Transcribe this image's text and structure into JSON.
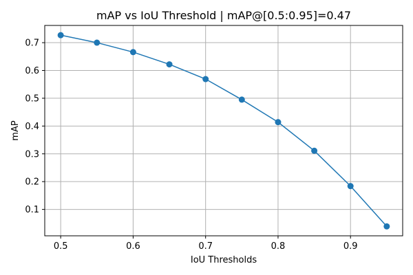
{
  "chart_data": {
    "type": "line",
    "title": "mAP vs IoU Threshold | mAP@[0.5:0.95]=0.47",
    "xlabel": "IoU Thresholds",
    "ylabel": "mAP",
    "xlim": [
      0.478,
      0.972
    ],
    "ylim": [
      0.005,
      0.762
    ],
    "grid": true,
    "x_ticks": [
      0.5,
      0.6,
      0.7,
      0.8,
      0.9
    ],
    "x_tick_labels": [
      "0.5",
      "0.6",
      "0.7",
      "0.8",
      "0.9"
    ],
    "y_ticks": [
      0.1,
      0.2,
      0.3,
      0.4,
      0.5,
      0.6,
      0.7
    ],
    "y_tick_labels": [
      "0.1",
      "0.2",
      "0.3",
      "0.4",
      "0.5",
      "0.6",
      "0.7"
    ],
    "series": [
      {
        "name": "mAP",
        "color": "#1f77b4",
        "marker": "circle",
        "x": [
          0.5,
          0.55,
          0.6,
          0.65,
          0.7,
          0.75,
          0.8,
          0.85,
          0.9,
          0.95
        ],
        "y": [
          0.727,
          0.7,
          0.666,
          0.622,
          0.569,
          0.495,
          0.414,
          0.311,
          0.184,
          0.039
        ]
      }
    ]
  }
}
